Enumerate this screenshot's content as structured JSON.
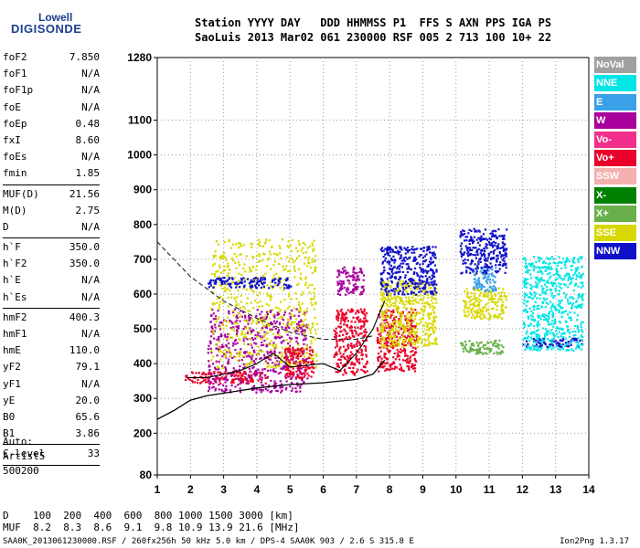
{
  "logo": {
    "line1": "Lowell",
    "line2": "DIGISONDE"
  },
  "header": {
    "row1": "Station YYYY DAY   DDD HHMMSS P1  FFS S AXN PPS IGA PS",
    "row2": "SaoLuis 2013 Mar02 061 230000 RSF 005 2 713 100 10+ 22"
  },
  "params": [
    {
      "group": [
        {
          "name": "foF2",
          "value": "7.850"
        },
        {
          "name": "foF1",
          "value": "N/A"
        },
        {
          "name": "foF1p",
          "value": "N/A"
        },
        {
          "name": "foE",
          "value": "N/A"
        },
        {
          "name": "foEp",
          "value": "0.48"
        },
        {
          "name": "fxI",
          "value": "8.60"
        },
        {
          "name": "foEs",
          "value": "N/A"
        },
        {
          "name": "fmin",
          "value": "1.85"
        }
      ]
    },
    {
      "group": [
        {
          "name": "MUF(D)",
          "value": "21.56"
        },
        {
          "name": "M(D)",
          "value": "2.75"
        },
        {
          "name": "D",
          "value": "N/A"
        }
      ]
    },
    {
      "group": [
        {
          "name": "h`F",
          "value": "350.0"
        },
        {
          "name": "h`F2",
          "value": "350.0"
        },
        {
          "name": "h`E",
          "value": "N/A"
        },
        {
          "name": "h`Es",
          "value": "N/A"
        }
      ]
    },
    {
      "group": [
        {
          "name": "hmF2",
          "value": "400.3"
        },
        {
          "name": "hmF1",
          "value": "N/A"
        },
        {
          "name": "hmE",
          "value": "110.0"
        },
        {
          "name": "yF2",
          "value": "79.1"
        },
        {
          "name": "yF1",
          "value": "N/A"
        },
        {
          "name": "yE",
          "value": "20.0"
        },
        {
          "name": "B0",
          "value": "65.6"
        },
        {
          "name": "B1",
          "value": "3.86"
        }
      ]
    },
    {
      "group": [
        {
          "name": "C-level",
          "value": "33"
        }
      ]
    }
  ],
  "auto": {
    "line1": "Auto:",
    "line2": "Artist5",
    "line3": "500200"
  },
  "footer": {
    "d_row": "D    100  200  400  600  800 1000 1500 3000 [km]",
    "muf_row": "MUF  8.2  8.3  8.6  9.1  9.8 10.9 13.9 21.6 [MHz]",
    "file_info": "SAA0K_2013061230000.RSF / 260fx256h 50 kHz 5.0 km / DPS-4 SAA0K 903 / 2.6 S 315.8 E",
    "version": "Ion2Png 1.3.17"
  },
  "legend": [
    {
      "label": "NoVal",
      "color": "#a0a0a0"
    },
    {
      "label": "NNE",
      "color": "#00e5e5"
    },
    {
      "label": "E",
      "color": "#3aa0e8"
    },
    {
      "label": "W",
      "color": "#a8009c"
    },
    {
      "label": "Vo-",
      "color": "#f0308a"
    },
    {
      "label": "Vo+",
      "color": "#e8002a"
    },
    {
      "label": "SSW",
      "color": "#f5b0b0"
    },
    {
      "label": "X-",
      "color": "#008000"
    },
    {
      "label": "X+",
      "color": "#6ab04a"
    },
    {
      "label": "SSE",
      "color": "#d8d800"
    },
    {
      "label": "NNW",
      "color": "#1010c8"
    }
  ],
  "chart_data": {
    "type": "scatter",
    "title": "",
    "xlabel": "",
    "ylabel": "",
    "xlim": [
      1,
      14
    ],
    "ylim": [
      80,
      1280
    ],
    "x_ticks": [
      1,
      2,
      3,
      4,
      5,
      6,
      7,
      8,
      9,
      10,
      11,
      12,
      13,
      14
    ],
    "y_ticks": [
      80,
      200,
      300,
      400,
      500,
      600,
      700,
      800,
      900,
      1000,
      1100,
      1280
    ],
    "grid": "dotted",
    "legend_position": "right",
    "clusters": [
      {
        "direction": "Vo+",
        "x": [
          1.8,
          4.3
        ],
        "y": [
          345,
          380
        ]
      },
      {
        "direction": "W",
        "x": [
          2.5,
          5.5
        ],
        "y": [
          320,
          560
        ]
      },
      {
        "direction": "SSE",
        "x": [
          2.6,
          5.8
        ],
        "y": [
          390,
          760
        ]
      },
      {
        "direction": "NNW",
        "x": [
          2.5,
          5.0
        ],
        "y": [
          620,
          650
        ]
      },
      {
        "direction": "Vo+",
        "x": [
          4.8,
          5.7
        ],
        "y": [
          360,
          450
        ]
      },
      {
        "direction": "Vo+",
        "x": [
          6.3,
          7.3
        ],
        "y": [
          370,
          560
        ]
      },
      {
        "direction": "W",
        "x": [
          6.4,
          7.2
        ],
        "y": [
          600,
          680
        ]
      },
      {
        "direction": "Vo+",
        "x": [
          7.6,
          8.8
        ],
        "y": [
          380,
          560
        ]
      },
      {
        "direction": "SSE",
        "x": [
          7.7,
          9.4
        ],
        "y": [
          450,
          640
        ]
      },
      {
        "direction": "NNW",
        "x": [
          7.7,
          9.4
        ],
        "y": [
          600,
          740
        ]
      },
      {
        "direction": "SSE",
        "x": [
          10.2,
          11.5
        ],
        "y": [
          530,
          620
        ]
      },
      {
        "direction": "E",
        "x": [
          10.5,
          11.2
        ],
        "y": [
          610,
          680
        ]
      },
      {
        "direction": "X+",
        "x": [
          10.1,
          11.4
        ],
        "y": [
          430,
          470
        ]
      },
      {
        "direction": "NNW",
        "x": [
          10.1,
          11.5
        ],
        "y": [
          660,
          790
        ]
      },
      {
        "direction": "NNW",
        "x": [
          12.0,
          13.8
        ],
        "y": [
          450,
          475
        ]
      },
      {
        "direction": "NNE",
        "x": [
          12.0,
          13.8
        ],
        "y": [
          440,
          710
        ]
      }
    ],
    "profile_curve": {
      "x": [
        1,
        1.5,
        2,
        2.5,
        3,
        4,
        5,
        6,
        7,
        7.5,
        7.85
      ],
      "y": [
        240,
        265,
        295,
        308,
        315,
        330,
        340,
        345,
        355,
        370,
        410
      ]
    },
    "dashed_curve": {
      "x": [
        1,
        2,
        3,
        4,
        5,
        6,
        7,
        7.5
      ],
      "y": [
        750,
        650,
        580,
        530,
        490,
        470,
        470,
        480
      ]
    },
    "trace_curve": {
      "x": [
        1.9,
        2.5,
        3,
        3.5,
        4,
        4.5,
        5,
        5.5,
        6,
        6.5,
        7,
        7.5,
        7.85
      ],
      "y": [
        360,
        360,
        370,
        380,
        400,
        430,
        390,
        395,
        400,
        380,
        430,
        500,
        580
      ]
    }
  }
}
